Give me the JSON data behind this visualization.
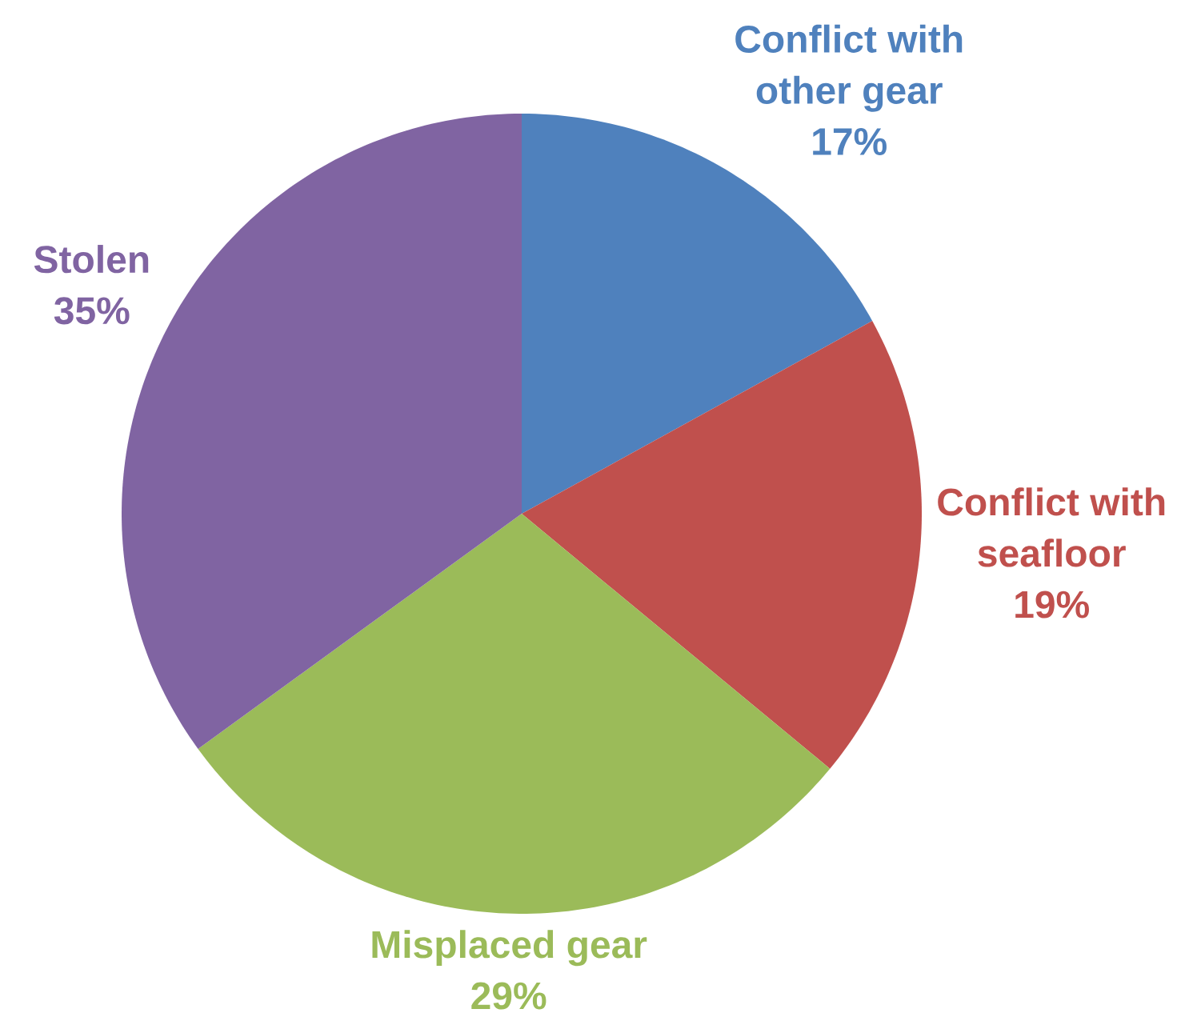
{
  "chart_data": {
    "type": "pie",
    "categories": [
      "Conflict with other gear",
      "Conflict with seafloor",
      "Misplaced gear",
      "Stolen"
    ],
    "values": [
      17,
      19,
      29,
      35
    ],
    "colors": [
      "#4f81bd",
      "#c0504d",
      "#9bbb59",
      "#8064a2"
    ],
    "value_labels": [
      "17%",
      "19%",
      "29%",
      "35%"
    ]
  }
}
